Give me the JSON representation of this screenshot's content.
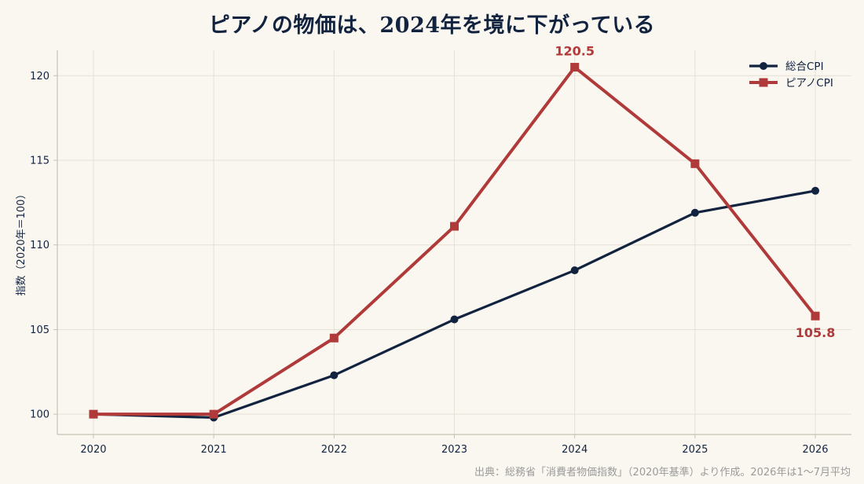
{
  "colors": {
    "background": "#faf7f0",
    "grid": "#e6e1d6",
    "axis": "#c8c2b6",
    "series_cpi": "#12233f",
    "series_piano": "#b03a3a",
    "source_text": "#9a9a9a"
  },
  "source": "出典：総務省「消費者物価指数」（2020年基準）より作成。2026年は1〜7月平均",
  "chart_data": {
    "type": "line",
    "title": "ピアノの物価は、2024年を境に下がっている",
    "xlabel": "",
    "ylabel": "指数（2020年＝100）",
    "x": [
      "2020",
      "2021",
      "2022",
      "2023",
      "2024",
      "2025",
      "2026"
    ],
    "xlim": [
      2019.7,
      2026.3
    ],
    "ylim": [
      98.8,
      121.5
    ],
    "yticks": [
      100,
      105,
      110,
      115,
      120
    ],
    "grid": true,
    "legend_position": "top-right",
    "series": [
      {
        "name": "総合CPI",
        "marker": "circle",
        "color": "#12233f",
        "values": [
          100.0,
          99.8,
          102.3,
          105.6,
          108.5,
          111.9,
          113.2
        ]
      },
      {
        "name": "ピアノCPI",
        "marker": "square",
        "color": "#b03a3a",
        "values": [
          100.0,
          100.0,
          104.5,
          111.1,
          120.5,
          114.8,
          105.8
        ]
      }
    ],
    "annotations": [
      {
        "series": 1,
        "x": "2024",
        "text": "120.5",
        "placement": "above"
      },
      {
        "series": 1,
        "x": "2026",
        "text": "105.8",
        "placement": "below"
      }
    ]
  }
}
